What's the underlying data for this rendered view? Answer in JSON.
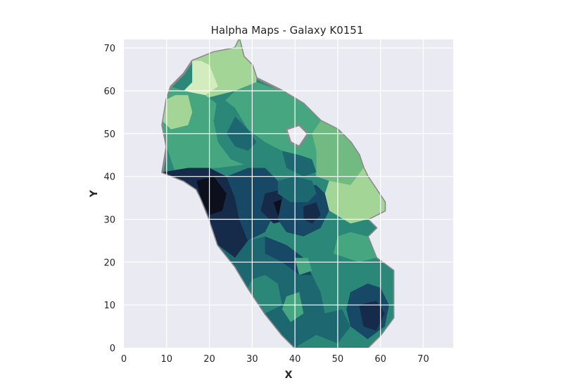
{
  "chart_data": {
    "type": "heatmap",
    "title": "Halpha Maps - Galaxy K0151",
    "xlabel": "X",
    "ylabel": "Y",
    "xlim": [
      0,
      77
    ],
    "ylim": [
      0,
      72
    ],
    "xticks": [
      0,
      10,
      20,
      30,
      40,
      50,
      60,
      70
    ],
    "yticks": [
      0,
      10,
      20,
      30,
      40,
      50,
      60,
      70
    ],
    "grid": true,
    "colormap": "yellow-green-blue (dark = high)",
    "colors": {
      "background": "#eaeaf2",
      "grid": "#ffffff",
      "outline": "#8a8a8a",
      "level_0": "#d3ecbd",
      "level_1": "#a3d696",
      "level_2": "#71bb83",
      "level_3": "#45a67f",
      "level_4": "#2b8878",
      "level_5": "#1c6770",
      "level_6": "#174865",
      "level_7": "#162a49",
      "level_8": "#0c0f1c"
    },
    "outline_polygon": [
      [
        27,
        72
      ],
      [
        26,
        70
      ],
      [
        21,
        69
      ],
      [
        16,
        67
      ],
      [
        14,
        64
      ],
      [
        11,
        61
      ],
      [
        10,
        58
      ],
      [
        9,
        52
      ],
      [
        10,
        47
      ],
      [
        9,
        41
      ],
      [
        14,
        39
      ],
      [
        17,
        37
      ],
      [
        18,
        35
      ],
      [
        20,
        30
      ],
      [
        22,
        24
      ],
      [
        26,
        19
      ],
      [
        29,
        14
      ],
      [
        33,
        8
      ],
      [
        37,
        3
      ],
      [
        40,
        0
      ],
      [
        57,
        0
      ],
      [
        60,
        3
      ],
      [
        63,
        7
      ],
      [
        63,
        18
      ],
      [
        59,
        21
      ],
      [
        57,
        26
      ],
      [
        59,
        28
      ],
      [
        57,
        30
      ],
      [
        61,
        32
      ],
      [
        61,
        34
      ],
      [
        59,
        37
      ],
      [
        57,
        40
      ],
      [
        56,
        42
      ],
      [
        55,
        45
      ],
      [
        53,
        48
      ],
      [
        50,
        51
      ],
      [
        46,
        53
      ],
      [
        42,
        57
      ],
      [
        37,
        60
      ],
      [
        31,
        63
      ],
      [
        30,
        66
      ],
      [
        28,
        68
      ]
    ],
    "hole_polygon": [
      [
        38,
        51
      ],
      [
        41,
        52
      ],
      [
        43,
        50
      ],
      [
        41,
        47
      ],
      [
        39,
        48
      ]
    ],
    "regions": [
      {
        "level": 1,
        "points": [
          [
            27,
            72
          ],
          [
            28,
            68
          ],
          [
            30,
            66
          ],
          [
            31,
            63
          ],
          [
            31,
            62
          ],
          [
            26,
            60
          ],
          [
            22,
            59
          ],
          [
            18,
            58
          ],
          [
            16,
            59
          ],
          [
            16,
            61
          ],
          [
            16,
            62
          ],
          [
            16,
            67
          ],
          [
            21,
            69
          ],
          [
            26,
            70
          ]
        ]
      },
      {
        "level": 0,
        "points": [
          [
            16,
            67
          ],
          [
            16,
            62
          ],
          [
            14,
            60
          ],
          [
            14,
            58
          ],
          [
            19,
            59
          ],
          [
            22,
            61
          ],
          [
            20,
            66
          ],
          [
            18,
            67
          ]
        ]
      },
      {
        "level": 3,
        "points": [
          [
            14,
            60
          ],
          [
            19,
            59
          ],
          [
            23,
            56
          ],
          [
            26,
            52
          ],
          [
            29,
            47
          ],
          [
            30,
            43
          ],
          [
            22,
            42
          ],
          [
            16,
            42
          ],
          [
            12,
            41
          ],
          [
            10,
            47
          ],
          [
            9,
            52
          ],
          [
            10,
            58
          ],
          [
            11,
            61
          ]
        ]
      },
      {
        "level": 1,
        "points": [
          [
            12,
            59
          ],
          [
            15,
            59
          ],
          [
            16,
            55
          ],
          [
            15,
            52
          ],
          [
            11,
            51
          ],
          [
            9,
            53
          ],
          [
            10,
            58
          ]
        ]
      },
      {
        "level": 3,
        "points": [
          [
            31,
            62
          ],
          [
            37,
            60
          ],
          [
            42,
            57
          ],
          [
            46,
            53
          ],
          [
            50,
            51
          ],
          [
            50,
            44
          ],
          [
            45,
            40
          ],
          [
            40,
            42
          ],
          [
            37,
            45
          ],
          [
            33,
            48
          ],
          [
            29,
            51
          ],
          [
            26,
            54
          ],
          [
            23,
            57
          ],
          [
            26,
            60
          ]
        ]
      },
      {
        "level": 2,
        "points": [
          [
            46,
            53
          ],
          [
            50,
            51
          ],
          [
            53,
            48
          ],
          [
            55,
            45
          ],
          [
            56,
            42
          ],
          [
            53,
            38
          ],
          [
            48,
            39
          ],
          [
            45,
            40
          ],
          [
            45,
            46
          ],
          [
            44,
            50
          ]
        ]
      },
      {
        "level": 1,
        "points": [
          [
            53,
            38
          ],
          [
            56,
            42
          ],
          [
            57,
            40
          ],
          [
            59,
            37
          ],
          [
            61,
            34
          ],
          [
            61,
            32
          ],
          [
            57,
            30
          ],
          [
            53,
            29
          ],
          [
            48,
            32
          ],
          [
            47,
            36
          ],
          [
            48,
            39
          ]
        ]
      },
      {
        "level": 4,
        "points": [
          [
            22,
            59
          ],
          [
            26,
            56
          ],
          [
            29,
            51
          ],
          [
            33,
            48
          ],
          [
            34,
            44
          ],
          [
            30,
            42
          ],
          [
            25,
            44
          ],
          [
            22,
            48
          ],
          [
            21,
            53
          ]
        ]
      },
      {
        "level": 5,
        "points": [
          [
            26,
            54
          ],
          [
            29,
            51
          ],
          [
            31,
            48
          ],
          [
            29,
            46
          ],
          [
            26,
            47
          ],
          [
            24,
            50
          ]
        ]
      },
      {
        "level": 4,
        "points": [
          [
            33,
            48
          ],
          [
            37,
            46
          ],
          [
            40,
            44
          ],
          [
            44,
            43
          ],
          [
            45,
            40
          ],
          [
            41,
            38
          ],
          [
            36,
            39
          ],
          [
            33,
            42
          ]
        ]
      },
      {
        "level": 5,
        "points": [
          [
            37,
            46
          ],
          [
            41,
            45
          ],
          [
            44,
            44
          ],
          [
            45,
            41
          ],
          [
            42,
            40
          ],
          [
            38,
            42
          ]
        ]
      },
      {
        "level": 7,
        "points": [
          [
            9,
            41
          ],
          [
            14,
            39
          ],
          [
            17,
            37
          ],
          [
            18,
            35
          ],
          [
            20,
            30
          ],
          [
            22,
            24
          ],
          [
            26,
            21
          ],
          [
            29,
            25
          ],
          [
            27,
            30
          ],
          [
            26,
            35
          ],
          [
            24,
            40
          ],
          [
            20,
            42
          ],
          [
            15,
            42
          ]
        ]
      },
      {
        "level": 8,
        "points": [
          [
            17,
            39
          ],
          [
            21,
            40
          ],
          [
            24,
            36
          ],
          [
            23,
            32
          ],
          [
            20,
            31
          ],
          [
            18,
            35
          ]
        ]
      },
      {
        "level": 6,
        "points": [
          [
            24,
            40
          ],
          [
            26,
            35
          ],
          [
            27,
            30
          ],
          [
            29,
            25
          ],
          [
            33,
            27
          ],
          [
            35,
            31
          ],
          [
            37,
            35
          ],
          [
            36,
            39
          ],
          [
            33,
            42
          ],
          [
            29,
            42
          ]
        ]
      },
      {
        "level": 7,
        "points": [
          [
            33,
            36
          ],
          [
            37,
            37
          ],
          [
            40,
            34
          ],
          [
            39,
            30
          ],
          [
            35,
            29
          ],
          [
            32,
            32
          ]
        ]
      },
      {
        "level": 8,
        "points": [
          [
            35,
            34
          ],
          [
            38,
            35
          ],
          [
            40,
            32
          ],
          [
            38,
            30
          ],
          [
            36,
            31
          ]
        ]
      },
      {
        "level": 6,
        "points": [
          [
            37,
            35
          ],
          [
            41,
            38
          ],
          [
            45,
            38
          ],
          [
            47,
            36
          ],
          [
            48,
            32
          ],
          [
            46,
            28
          ],
          [
            42,
            26
          ],
          [
            38,
            27
          ],
          [
            36,
            30
          ]
        ]
      },
      {
        "level": 7,
        "points": [
          [
            42,
            33
          ],
          [
            45,
            34
          ],
          [
            46,
            31
          ],
          [
            44,
            29
          ],
          [
            42,
            30
          ]
        ]
      },
      {
        "level": 5,
        "points": [
          [
            36,
            39
          ],
          [
            40,
            40
          ],
          [
            44,
            39
          ],
          [
            45,
            36
          ],
          [
            43,
            34
          ],
          [
            39,
            34
          ],
          [
            36,
            36
          ]
        ]
      },
      {
        "level": 4,
        "points": [
          [
            46,
            28
          ],
          [
            48,
            32
          ],
          [
            53,
            29
          ],
          [
            57,
            30
          ],
          [
            59,
            28
          ],
          [
            57,
            26
          ],
          [
            59,
            21
          ],
          [
            55,
            20
          ],
          [
            49,
            22
          ],
          [
            46,
            25
          ]
        ]
      },
      {
        "level": 3,
        "points": [
          [
            49,
            22
          ],
          [
            55,
            20
          ],
          [
            59,
            21
          ],
          [
            57,
            26
          ],
          [
            53,
            27
          ],
          [
            50,
            26
          ]
        ]
      },
      {
        "level": 5,
        "points": [
          [
            22,
            24
          ],
          [
            26,
            19
          ],
          [
            29,
            14
          ],
          [
            33,
            8
          ],
          [
            37,
            3
          ],
          [
            40,
            0
          ],
          [
            45,
            3
          ],
          [
            47,
            8
          ],
          [
            46,
            13
          ],
          [
            44,
            17
          ],
          [
            42,
            21
          ],
          [
            38,
            24
          ],
          [
            33,
            26
          ],
          [
            29,
            25
          ],
          [
            26,
            21
          ]
        ]
      },
      {
        "level": 4,
        "points": [
          [
            29,
            14
          ],
          [
            33,
            8
          ],
          [
            37,
            10
          ],
          [
            36,
            15
          ],
          [
            33,
            17
          ],
          [
            30,
            16
          ]
        ]
      },
      {
        "level": 6,
        "points": [
          [
            33,
            26
          ],
          [
            38,
            24
          ],
          [
            42,
            21
          ],
          [
            44,
            17
          ],
          [
            41,
            17
          ],
          [
            37,
            20
          ],
          [
            33,
            22
          ]
        ]
      },
      {
        "level": 4,
        "points": [
          [
            42,
            21
          ],
          [
            46,
            25
          ],
          [
            49,
            22
          ],
          [
            52,
            18
          ],
          [
            55,
            20
          ],
          [
            59,
            21
          ],
          [
            57,
            15
          ],
          [
            53,
            13
          ],
          [
            48,
            14
          ],
          [
            44,
            17
          ]
        ]
      },
      {
        "level": 4,
        "points": [
          [
            40,
            0
          ],
          [
            45,
            3
          ],
          [
            47,
            8
          ],
          [
            46,
            13
          ],
          [
            48,
            14
          ],
          [
            53,
            13
          ],
          [
            57,
            15
          ],
          [
            59,
            21
          ],
          [
            63,
            18
          ],
          [
            63,
            7
          ],
          [
            60,
            3
          ],
          [
            57,
            0
          ]
        ]
      },
      {
        "level": 3,
        "points": [
          [
            38,
            12
          ],
          [
            41,
            13
          ],
          [
            42,
            8
          ],
          [
            39,
            6
          ],
          [
            37,
            9
          ]
        ]
      },
      {
        "level": 3,
        "points": [
          [
            40,
            21
          ],
          [
            43,
            21
          ],
          [
            44,
            18
          ],
          [
            41,
            17
          ]
        ]
      },
      {
        "level": 6,
        "points": [
          [
            53,
            13
          ],
          [
            57,
            15
          ],
          [
            60,
            14
          ],
          [
            62,
            10
          ],
          [
            61,
            5
          ],
          [
            57,
            2
          ],
          [
            53,
            5
          ],
          [
            52,
            9
          ]
        ]
      },
      {
        "level": 7,
        "points": [
          [
            55,
            10
          ],
          [
            59,
            11
          ],
          [
            61,
            8
          ],
          [
            59,
            4
          ],
          [
            56,
            5
          ]
        ]
      },
      {
        "level": 5,
        "points": [
          [
            45,
            3
          ],
          [
            47,
            8
          ],
          [
            51,
            9
          ],
          [
            53,
            5
          ],
          [
            50,
            1
          ]
        ]
      }
    ]
  }
}
